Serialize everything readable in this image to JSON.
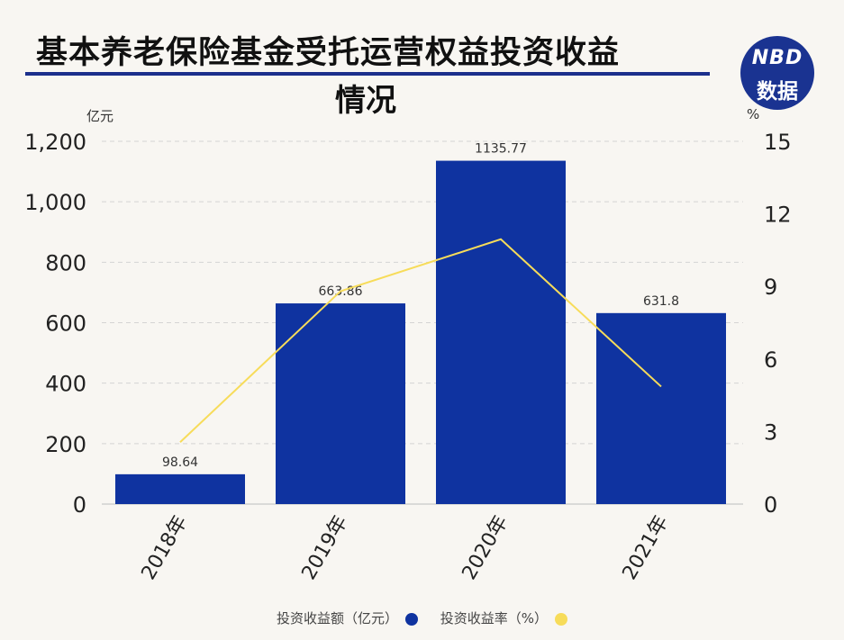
{
  "header": {
    "title_line1": "基本养老保险基金受托运营权益投资收益",
    "title_line2": "情况",
    "logo_top": "NBD",
    "logo_bottom": "数据"
  },
  "colors": {
    "bar": "#0f33a0",
    "line": "#f7dc5a",
    "logo_bg": "#1a3391"
  },
  "chart_data": {
    "type": "bar",
    "categories": [
      "2018年",
      "2019年",
      "2020年",
      "2021年"
    ],
    "series": [
      {
        "name": "投资收益额（亿元）",
        "values": [
          98.64,
          663.86,
          1135.77,
          631.8
        ],
        "labels": [
          "98.64",
          "663.86",
          "1135.77",
          "631.8"
        ],
        "axis": "left",
        "kind": "bar"
      },
      {
        "name": "投资收益率（%）",
        "values": [
          2.56,
          8.8,
          10.95,
          4.86
        ],
        "axis": "right",
        "kind": "line"
      }
    ],
    "ylabel": "亿元",
    "y2label": "%",
    "ylim": [
      0,
      1200
    ],
    "y2lim": [
      0,
      15
    ],
    "yticks": [
      "0",
      "200",
      "400",
      "600",
      "800",
      "1,000",
      "1,200"
    ],
    "y2ticks": [
      "0",
      "3",
      "6",
      "9",
      "12",
      "15"
    ],
    "grid": true,
    "legend": "bottom"
  }
}
